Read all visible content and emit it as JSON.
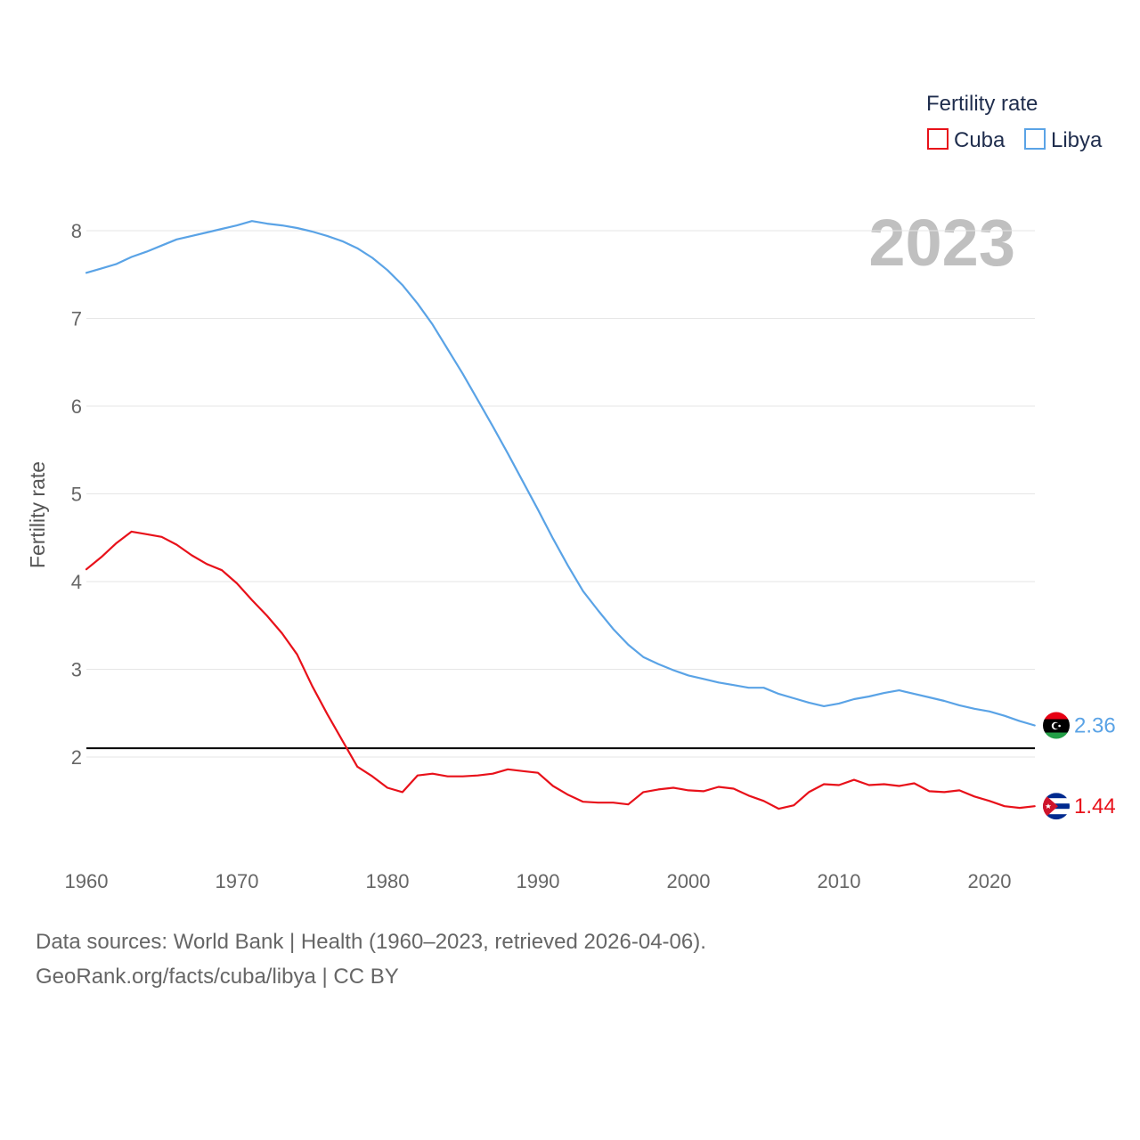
{
  "chart_data": {
    "type": "line",
    "title": "Fertility rate",
    "legend_title": "Fertility rate",
    "legend_position": "top-right",
    "year_label": "2023",
    "xlabel": "",
    "ylabel": "Fertility rate",
    "xlim": [
      1960,
      2023
    ],
    "ylim": [
      1.0,
      8.4
    ],
    "xticks": [
      1960,
      1970,
      1980,
      1990,
      2000,
      2010,
      2020
    ],
    "yticks": [
      2,
      3,
      4,
      5,
      6,
      7,
      8
    ],
    "grid": true,
    "reference_line": {
      "y": 2.1,
      "color": "#000000"
    },
    "x": [
      1960,
      1961,
      1962,
      1963,
      1964,
      1965,
      1966,
      1967,
      1968,
      1969,
      1970,
      1971,
      1972,
      1973,
      1974,
      1975,
      1976,
      1977,
      1978,
      1979,
      1980,
      1981,
      1982,
      1983,
      1984,
      1985,
      1986,
      1987,
      1988,
      1989,
      1990,
      1991,
      1992,
      1993,
      1994,
      1995,
      1996,
      1997,
      1998,
      1999,
      2000,
      2001,
      2002,
      2003,
      2004,
      2005,
      2006,
      2007,
      2008,
      2009,
      2010,
      2011,
      2012,
      2013,
      2014,
      2015,
      2016,
      2017,
      2018,
      2019,
      2020,
      2021,
      2022,
      2023
    ],
    "series": [
      {
        "name": "Cuba",
        "color": "#e8111a",
        "end_label": "1.44",
        "flag": "cuba-flag",
        "values": [
          4.14,
          4.28,
          4.44,
          4.57,
          4.54,
          4.51,
          4.42,
          4.3,
          4.2,
          4.13,
          3.98,
          3.79,
          3.61,
          3.41,
          3.17,
          2.81,
          2.49,
          2.19,
          1.89,
          1.78,
          1.65,
          1.6,
          1.79,
          1.81,
          1.78,
          1.78,
          1.79,
          1.81,
          1.86,
          1.84,
          1.82,
          1.67,
          1.57,
          1.49,
          1.48,
          1.48,
          1.46,
          1.6,
          1.63,
          1.65,
          1.62,
          1.61,
          1.66,
          1.64,
          1.56,
          1.5,
          1.41,
          1.45,
          1.6,
          1.69,
          1.68,
          1.74,
          1.68,
          1.69,
          1.67,
          1.7,
          1.61,
          1.6,
          1.62,
          1.55,
          1.5,
          1.44,
          1.42,
          1.44
        ]
      },
      {
        "name": "Libya",
        "color": "#5aa3e6",
        "end_label": "2.36",
        "flag": "libya-flag",
        "values": [
          7.52,
          7.57,
          7.62,
          7.7,
          7.76,
          7.83,
          7.9,
          7.94,
          7.98,
          8.02,
          8.06,
          8.11,
          8.08,
          8.06,
          8.03,
          7.99,
          7.94,
          7.88,
          7.8,
          7.69,
          7.55,
          7.38,
          7.17,
          6.93,
          6.65,
          6.37,
          6.07,
          5.77,
          5.46,
          5.14,
          4.82,
          4.49,
          4.18,
          3.89,
          3.67,
          3.46,
          3.28,
          3.14,
          3.06,
          2.99,
          2.93,
          2.89,
          2.85,
          2.82,
          2.79,
          2.79,
          2.72,
          2.67,
          2.62,
          2.58,
          2.61,
          2.66,
          2.69,
          2.73,
          2.76,
          2.72,
          2.68,
          2.64,
          2.59,
          2.55,
          2.52,
          2.47,
          2.41,
          2.36
        ]
      }
    ]
  },
  "footer": {
    "line1": "Data sources: World Bank | Health (1960–2023, retrieved 2026-04-06).",
    "line2": "GeoRank.org/facts/cuba/libya | CC BY"
  }
}
